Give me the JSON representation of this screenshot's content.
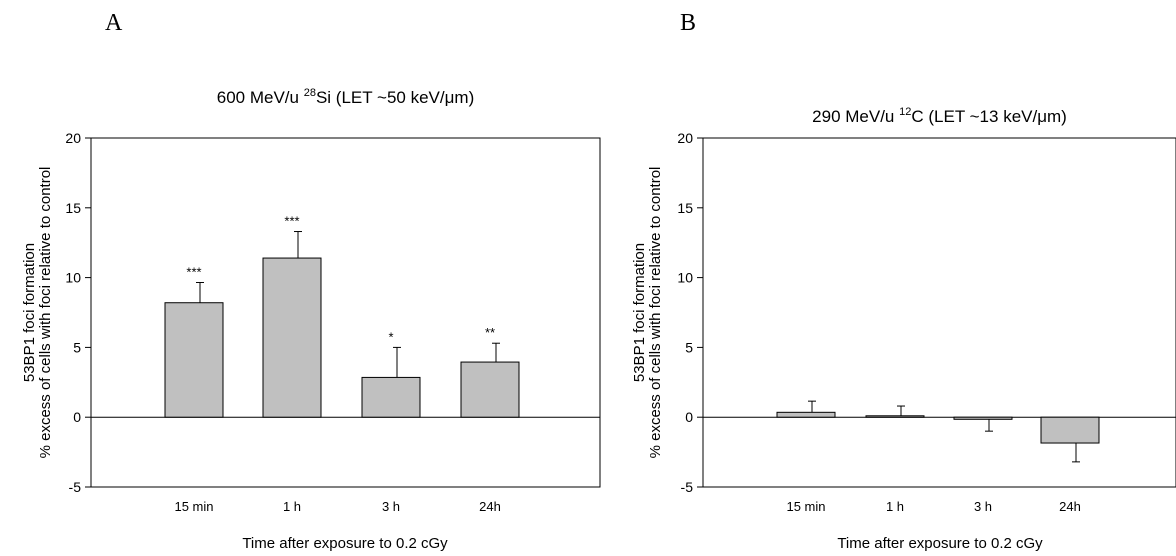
{
  "panels": [
    {
      "letter": "A"
    },
    {
      "letter": "B"
    }
  ],
  "chart_data": [
    {
      "type": "bar",
      "title_prefix": "600 MeV/u ",
      "title_sup": "28",
      "title_suffix": "Si (LET ~50 keV/μm)",
      "xlabel": "Time after exposure to 0.2 cGy",
      "ylabel_line1": "53BP1 foci formation",
      "ylabel_line2": "% excess of cells with foci relative to control",
      "categories": [
        "15 min",
        "1 h",
        "3 h",
        "24h"
      ],
      "values": [
        8.2,
        11.4,
        2.85,
        3.95
      ],
      "errors": [
        1.45,
        1.9,
        2.15,
        1.35
      ],
      "significance": [
        "***",
        "***",
        "*",
        "**"
      ],
      "ylim": [
        -5,
        20
      ],
      "yticks": [
        "-5",
        "0",
        "5",
        "10",
        "15",
        "20"
      ],
      "bar_color": "#c0c0c0"
    },
    {
      "type": "bar",
      "title_prefix": "290 MeV/u ",
      "title_sup": "12",
      "title_suffix": "C (LET ~13 keV/μm)",
      "xlabel": "Time after exposure to 0.2 cGy",
      "ylabel_line1": "53BP1 foci formation",
      "ylabel_line2": "% excess of cells with foci relative to control",
      "categories": [
        "15 min",
        "1 h",
        "3 h",
        "24h"
      ],
      "values": [
        0.35,
        0.1,
        -0.15,
        -1.85
      ],
      "errors": [
        0.8,
        0.7,
        0.85,
        1.35
      ],
      "significance": [
        "",
        "",
        "",
        ""
      ],
      "ylim": [
        -5,
        20
      ],
      "yticks": [
        "-5",
        "0",
        "5",
        "10",
        "15",
        "20"
      ],
      "bar_color": "#c0c0c0"
    }
  ]
}
